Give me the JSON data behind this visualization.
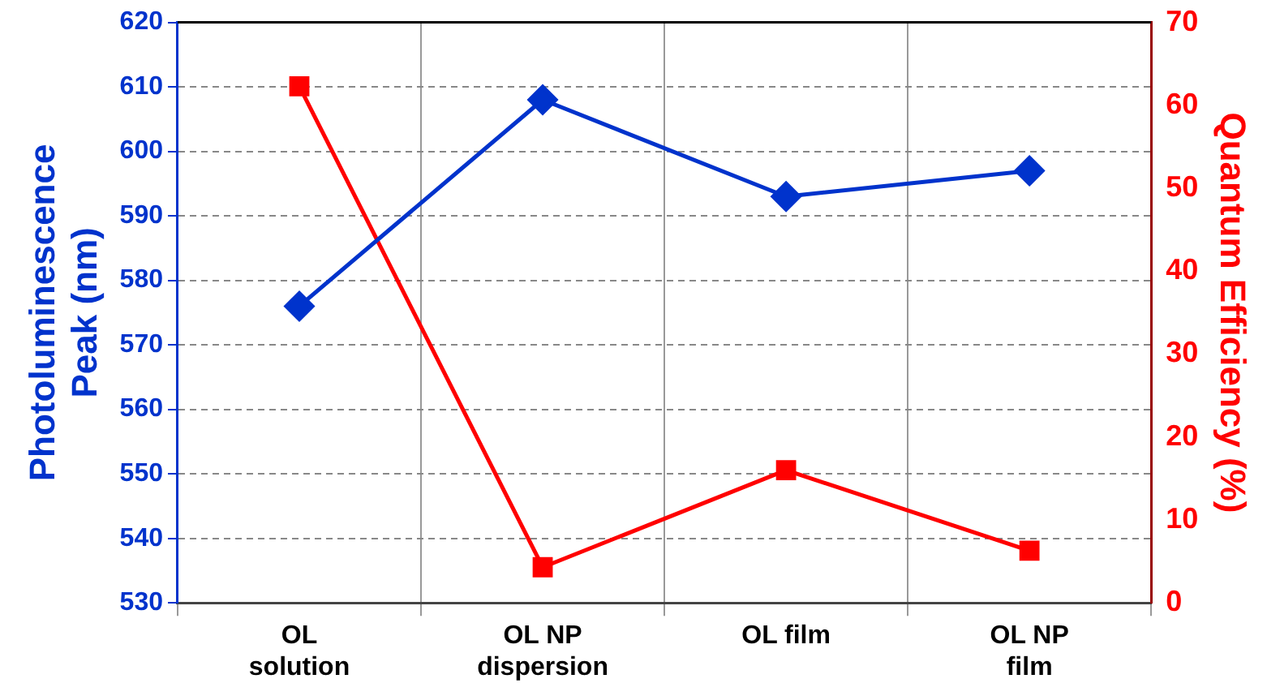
{
  "chart_data": {
    "type": "line",
    "categories": [
      "OL solution",
      "OL NP dispersion",
      "OL film",
      "OL NP film"
    ],
    "ylabel": "Photoluminescence Peak (nm)",
    "y2label": "Quantum Efficiency (%)",
    "ylim": [
      530,
      620
    ],
    "yticks": [
      530,
      540,
      550,
      560,
      570,
      580,
      590,
      600,
      610,
      620
    ],
    "y2lim": [
      0,
      70
    ],
    "y2ticks": [
      0,
      10,
      20,
      30,
      40,
      50,
      60,
      70
    ],
    "grid": true,
    "legend": false,
    "series": [
      {
        "color": "#0033cc",
        "values": [
          576,
          608,
          593,
          597
        ],
        "marker": "diamond"
      },
      {
        "color": "#ff0000",
        "values": [
          62.3,
          4.3,
          16.0,
          6.3
        ],
        "marker": "square",
        "axis": "y2"
      }
    ]
  }
}
